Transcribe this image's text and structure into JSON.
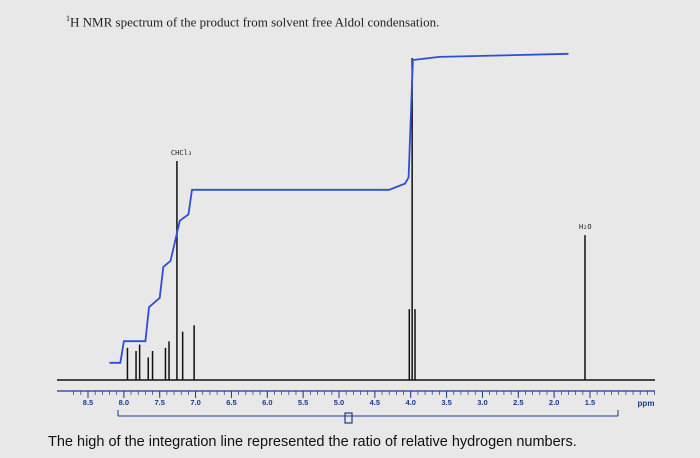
{
  "title": {
    "superscript": "1",
    "text": "H NMR spectrum of the product from solvent free Aldol condensation."
  },
  "caption": "The high of the integration line represented the ratio of relative hydrogen numbers.",
  "chart_data": {
    "type": "line",
    "xlabel": "ppm",
    "xlim": [
      8.5,
      0.8
    ],
    "reversed_x": true,
    "ticks": [
      {
        "value": 8.5,
        "label": "8.5"
      },
      {
        "value": 8.0,
        "label": "8.0"
      },
      {
        "value": 7.5,
        "label": "7.5"
      },
      {
        "value": 7.0,
        "label": "7.0"
      },
      {
        "value": 6.5,
        "label": "6.5"
      },
      {
        "value": 6.0,
        "label": "6.0"
      },
      {
        "value": 5.5,
        "label": "5.5"
      },
      {
        "value": 5.0,
        "label": "5.0"
      },
      {
        "value": 4.5,
        "label": "4.5"
      },
      {
        "value": 4.0,
        "label": "4.0"
      },
      {
        "value": 3.5,
        "label": "3.5"
      },
      {
        "value": 3.0,
        "label": "3.0"
      },
      {
        "value": 2.5,
        "label": "2.5"
      },
      {
        "value": 2.0,
        "label": "2.0"
      },
      {
        "value": 1.5,
        "label": "1.5"
      }
    ],
    "peaks": [
      {
        "ppm": 7.95,
        "intensity": 0.1
      },
      {
        "ppm": 7.83,
        "intensity": 0.09
      },
      {
        "ppm": 7.78,
        "intensity": 0.11
      },
      {
        "ppm": 7.66,
        "intensity": 0.07
      },
      {
        "ppm": 7.6,
        "intensity": 0.09
      },
      {
        "ppm": 7.42,
        "intensity": 0.1
      },
      {
        "ppm": 7.37,
        "intensity": 0.12
      },
      {
        "ppm": 7.26,
        "intensity": 0.68,
        "label": "CHCl₃"
      },
      {
        "ppm": 7.18,
        "intensity": 0.15
      },
      {
        "ppm": 7.02,
        "intensity": 0.17
      },
      {
        "ppm": 4.02,
        "intensity": 0.22
      },
      {
        "ppm": 3.98,
        "intensity": 1.0
      },
      {
        "ppm": 3.94,
        "intensity": 0.22
      },
      {
        "ppm": 1.57,
        "intensity": 0.45,
        "label": "H₂O"
      }
    ],
    "integration": [
      {
        "ppm": 8.2,
        "value": 0.02
      },
      {
        "ppm": 8.05,
        "value": 0.02
      },
      {
        "ppm": 8.0,
        "value": 0.09
      },
      {
        "ppm": 7.7,
        "value": 0.09
      },
      {
        "ppm": 7.65,
        "value": 0.2
      },
      {
        "ppm": 7.5,
        "value": 0.23
      },
      {
        "ppm": 7.45,
        "value": 0.33
      },
      {
        "ppm": 7.35,
        "value": 0.35
      },
      {
        "ppm": 7.3,
        "value": 0.4
      },
      {
        "ppm": 7.22,
        "value": 0.48
      },
      {
        "ppm": 7.1,
        "value": 0.5
      },
      {
        "ppm": 7.05,
        "value": 0.58
      },
      {
        "ppm": 6.6,
        "value": 0.58
      },
      {
        "ppm": 4.3,
        "value": 0.58
      },
      {
        "ppm": 4.08,
        "value": 0.6
      },
      {
        "ppm": 4.03,
        "value": 0.62
      },
      {
        "ppm": 3.97,
        "value": 1.0
      },
      {
        "ppm": 3.6,
        "value": 1.01
      },
      {
        "ppm": 1.8,
        "value": 1.02
      }
    ],
    "colors": {
      "spectrum": "#111111",
      "integration": "#2d4fd6",
      "axis": "#1a3a8a",
      "background": "#e8e8e8"
    }
  }
}
